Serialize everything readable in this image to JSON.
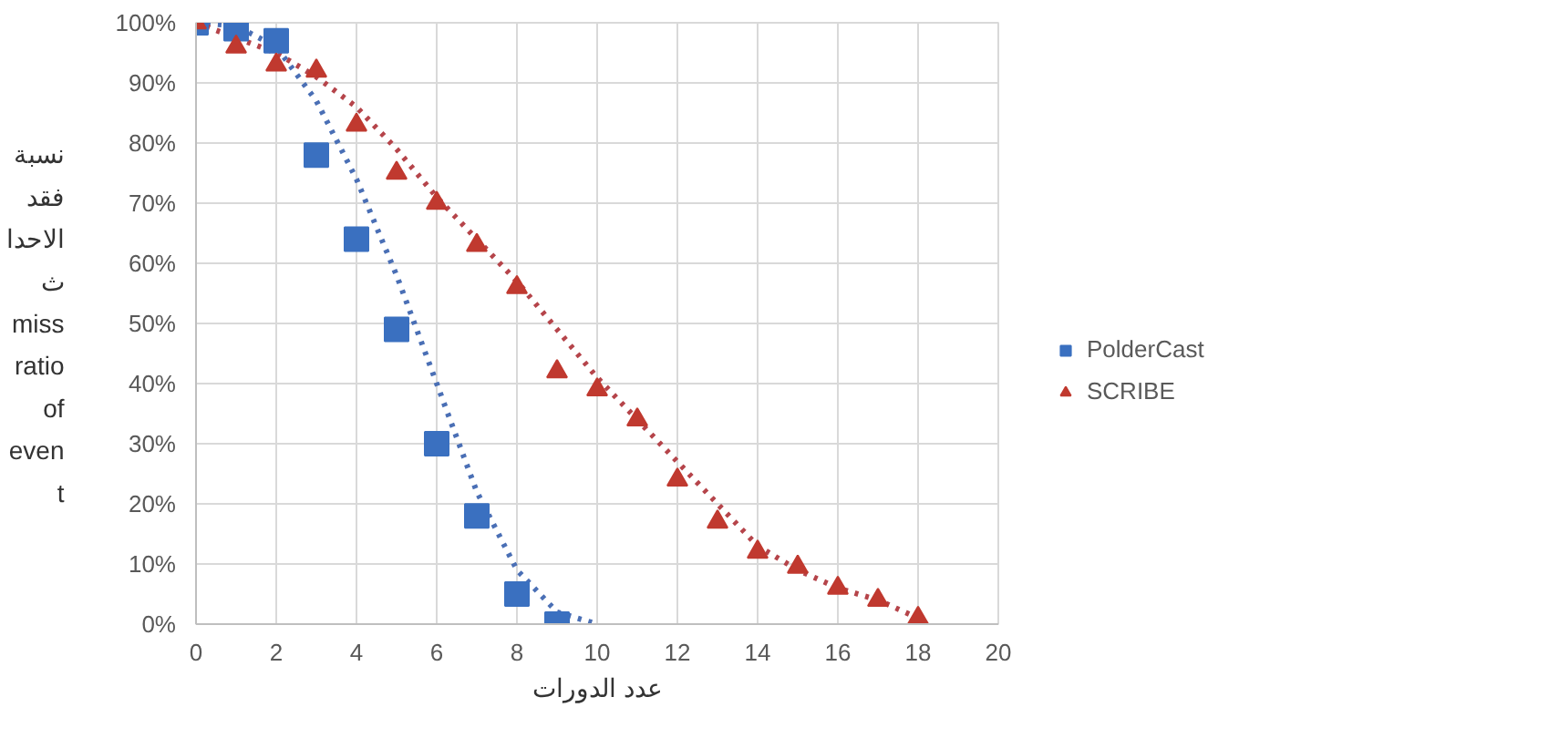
{
  "chart_data": {
    "type": "scatter",
    "xlabel": "عدد الدورات",
    "ylabel": "نسبة\nفقد\nالاحدا\nث\nmiss\nratio\nof\neven\nt",
    "xlim": [
      0,
      20
    ],
    "xticks": [
      0,
      2,
      4,
      6,
      8,
      10,
      12,
      14,
      16,
      18,
      20
    ],
    "ylim": [
      0,
      100
    ],
    "yticks": [
      {
        "value": 0,
        "label": "0%"
      },
      {
        "value": 10,
        "label": "10%"
      },
      {
        "value": 20,
        "label": "20%"
      },
      {
        "value": 30,
        "label": "30%"
      },
      {
        "value": 40,
        "label": "40%"
      },
      {
        "value": 50,
        "label": "50%"
      },
      {
        "value": 60,
        "label": "60%"
      },
      {
        "value": 70,
        "label": "70%"
      },
      {
        "value": 80,
        "label": "80%"
      },
      {
        "value": 90,
        "label": "90%"
      },
      {
        "value": 100,
        "label": "100%"
      }
    ],
    "grid": true,
    "legend": "right",
    "series": [
      {
        "type": "line",
        "line_style": "dotted",
        "marker": "none",
        "color": "#4a6fb5",
        "x": [
          0,
          1,
          2,
          3,
          4,
          5,
          6,
          7,
          8,
          9,
          10
        ],
        "values": [
          100,
          99.5,
          96,
          87,
          74,
          58,
          40,
          22,
          9,
          2,
          0
        ]
      },
      {
        "type": "line",
        "line_style": "dotted",
        "marker": "none",
        "color": "#b5444a",
        "x": [
          0,
          2,
          3,
          4,
          5,
          6,
          7,
          8,
          9,
          10,
          11,
          12,
          13,
          14,
          15,
          16,
          17,
          18
        ],
        "values": [
          100,
          95,
          91,
          86,
          79,
          71,
          64,
          57,
          49,
          41,
          34,
          27,
          20,
          13,
          9,
          6,
          4,
          1
        ]
      },
      {
        "name": "PolderCast",
        "marker": "square",
        "color": "#3a70c0",
        "x": [
          0,
          1,
          2,
          3,
          4,
          5,
          6,
          7,
          8,
          9
        ],
        "values": [
          100,
          99,
          97,
          78,
          64,
          49,
          30,
          18,
          5,
          0
        ]
      },
      {
        "name": "SCRIBE",
        "marker": "triangle",
        "color": "#c0392f",
        "x": [
          0,
          1,
          2,
          3,
          4,
          5,
          6,
          7,
          8,
          9,
          10,
          11,
          12,
          13,
          14,
          15,
          16,
          17,
          18
        ],
        "values": [
          100,
          96,
          93,
          92,
          83,
          75,
          70,
          63,
          56,
          42,
          39,
          34,
          24,
          17,
          12,
          9.5,
          6,
          4,
          1
        ]
      }
    ]
  }
}
